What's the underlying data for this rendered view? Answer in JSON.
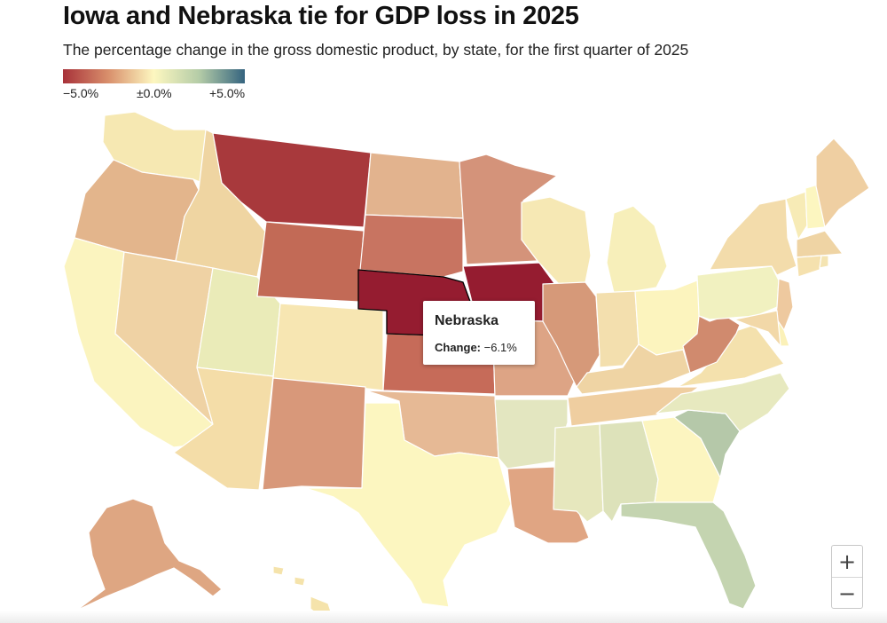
{
  "title": "Iowa and Nebraska tie for GDP loss in 2025",
  "subtitle": "The percentage change in the gross domestic product, by state, for the first quarter of 2025",
  "legend": {
    "min_label": "−5.0%",
    "mid_label": "±0.0%",
    "max_label": "+5.0%",
    "colors": [
      "#a8323a",
      "#d9906c",
      "#fdf7c0",
      "#b4cca7",
      "#35647f"
    ]
  },
  "tooltip": {
    "state": "Nebraska",
    "change_label": "Change:",
    "change_value": "−6.1%"
  },
  "zoom": {
    "in_label": "+",
    "out_label": "−"
  },
  "states": [
    {
      "name": "Washington",
      "color": "#f6e8b2"
    },
    {
      "name": "Oregon",
      "color": "#e3b58c"
    },
    {
      "name": "California",
      "color": "#fbf4bf"
    },
    {
      "name": "Idaho",
      "color": "#efd5a2"
    },
    {
      "name": "Nevada",
      "color": "#efd2a4"
    },
    {
      "name": "Utah",
      "color": "#eaebb8"
    },
    {
      "name": "Arizona",
      "color": "#f4dda8"
    },
    {
      "name": "Montana",
      "color": "#a8393c"
    },
    {
      "name": "Wyoming",
      "color": "#c26a56"
    },
    {
      "name": "Colorado",
      "color": "#f7e6b2"
    },
    {
      "name": "New Mexico",
      "color": "#d8987a"
    },
    {
      "name": "North Dakota",
      "color": "#e2b38e"
    },
    {
      "name": "South Dakota",
      "color": "#c87461"
    },
    {
      "name": "Nebraska",
      "color": "#951c30"
    },
    {
      "name": "Kansas",
      "color": "#c66b59"
    },
    {
      "name": "Oklahoma",
      "color": "#e6b995"
    },
    {
      "name": "Texas",
      "color": "#fcf6c0"
    },
    {
      "name": "Minnesota",
      "color": "#d4937a"
    },
    {
      "name": "Iowa",
      "color": "#951c30"
    },
    {
      "name": "Missouri",
      "color": "#dda485"
    },
    {
      "name": "Arkansas",
      "color": "#e3e6c0"
    },
    {
      "name": "Louisiana",
      "color": "#e0a583"
    },
    {
      "name": "Wisconsin",
      "color": "#f6e8b4"
    },
    {
      "name": "Illinois",
      "color": "#d69979"
    },
    {
      "name": "Michigan",
      "color": "#f7efba"
    },
    {
      "name": "Indiana",
      "color": "#f3dfae"
    },
    {
      "name": "Ohio",
      "color": "#fcf4be"
    },
    {
      "name": "Kentucky",
      "color": "#efd4a4"
    },
    {
      "name": "Tennessee",
      "color": "#efcea0"
    },
    {
      "name": "Mississippi",
      "color": "#e6e7bd"
    },
    {
      "name": "Alabama",
      "color": "#dde2ba"
    },
    {
      "name": "Georgia",
      "color": "#fcf5c0"
    },
    {
      "name": "Florida",
      "color": "#c4d4b0"
    },
    {
      "name": "South Carolina",
      "color": "#b5c8a9"
    },
    {
      "name": "North Carolina",
      "color": "#e7e9bf"
    },
    {
      "name": "Virginia",
      "color": "#f4e1ad"
    },
    {
      "name": "West Virginia",
      "color": "#d08a6e"
    },
    {
      "name": "Pennsylvania",
      "color": "#f1f1c0"
    },
    {
      "name": "New York",
      "color": "#f3dcab"
    },
    {
      "name": "New Jersey",
      "color": "#eec99f"
    },
    {
      "name": "Delaware",
      "color": "#fbf1b8"
    },
    {
      "name": "Maryland",
      "color": "#f2d8a8"
    },
    {
      "name": "Vermont",
      "color": "#f7ebb6"
    },
    {
      "name": "New Hampshire",
      "color": "#fcf6c0"
    },
    {
      "name": "Maine",
      "color": "#efcfa2"
    },
    {
      "name": "Massachusetts",
      "color": "#efd4a4"
    },
    {
      "name": "Connecticut",
      "color": "#f5e1ae"
    },
    {
      "name": "Rhode Island",
      "color": "#f4e4b2"
    },
    {
      "name": "Alaska",
      "color": "#dea682"
    },
    {
      "name": "Hawaii",
      "color": "#f5e3ab"
    }
  ]
}
